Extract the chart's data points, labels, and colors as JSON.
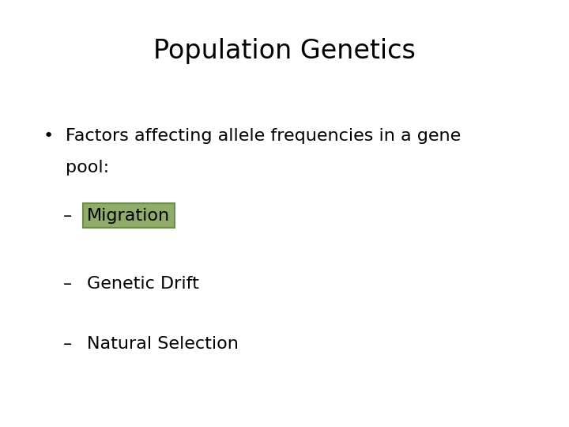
{
  "title": "Population Genetics",
  "title_fontsize": 24,
  "background_color": "#ffffff",
  "text_color": "#000000",
  "bullet_line1": "Factors affecting allele frequencies in a gene",
  "bullet_line2": "pool:",
  "bullet_fontsize": 16,
  "sub_items": [
    {
      "label": "Migration",
      "highlighted": true,
      "highlight_color": "#8fac6b",
      "highlight_edge": "#6b8c4e"
    },
    {
      "label": "Genetic Drift",
      "highlighted": false
    },
    {
      "label": "Natural Selection",
      "highlighted": false
    }
  ],
  "sub_fontsize": 16,
  "dash_prefix": "– "
}
